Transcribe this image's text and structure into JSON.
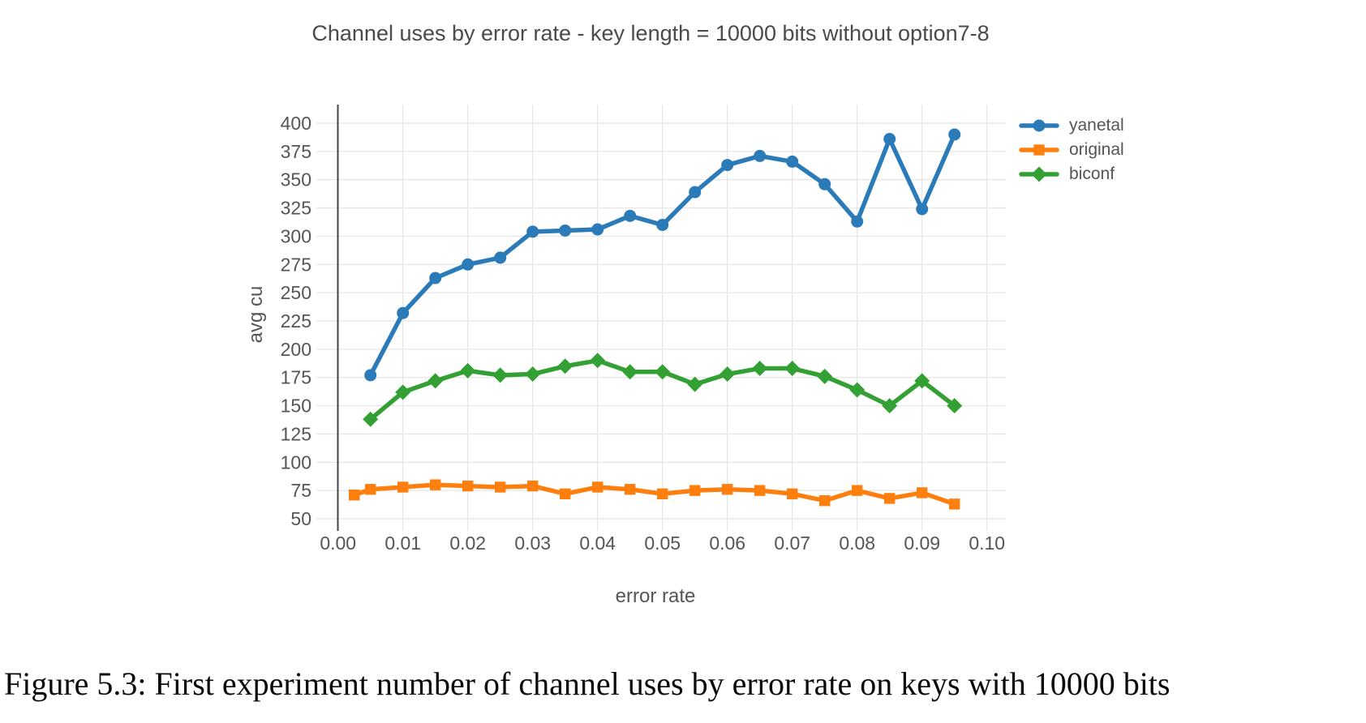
{
  "caption": {
    "text": "Figure 5.3: First experiment number of channel uses by error rate on keys with 10000 bits"
  },
  "chart_data": {
    "type": "line",
    "title": "Channel uses by error rate - key length = 10000 bits without option7-8",
    "xlabel": "error rate",
    "ylabel": "avg cu",
    "grid": true,
    "legend_position": "top-right-outside",
    "xlim": [
      0.0,
      0.103
    ],
    "ylim": [
      38,
      419
    ],
    "x_ticks": [
      0.0,
      0.01,
      0.02,
      0.03,
      0.04,
      0.05,
      0.06,
      0.07,
      0.08,
      0.09,
      0.1
    ],
    "x_tick_labels": [
      "0.00",
      "0.01",
      "0.02",
      "0.03",
      "0.04",
      "0.05",
      "0.06",
      "0.07",
      "0.08",
      "0.09",
      "0.10"
    ],
    "y_ticks": [
      50,
      75,
      100,
      125,
      150,
      175,
      200,
      225,
      250,
      275,
      300,
      325,
      350,
      375,
      400
    ],
    "colors": {
      "grid": "#e8e8e8",
      "axis": "#444444",
      "text": "#555555"
    },
    "series": [
      {
        "name": "yanetal",
        "color": "#2b7bb9",
        "marker": "circle",
        "x": [
          0.005,
          0.01,
          0.015,
          0.02,
          0.025,
          0.03,
          0.035,
          0.04,
          0.045,
          0.05,
          0.055,
          0.06,
          0.065,
          0.07,
          0.075,
          0.08,
          0.085,
          0.09,
          0.095
        ],
        "y": [
          177,
          232,
          263,
          275,
          281,
          304,
          305,
          306,
          318,
          310,
          339,
          363,
          371,
          366,
          346,
          313,
          386,
          324,
          390
        ]
      },
      {
        "name": "original",
        "color": "#ff7f0e",
        "marker": "square",
        "x": [
          0.0025,
          0.005,
          0.01,
          0.015,
          0.02,
          0.025,
          0.03,
          0.035,
          0.04,
          0.045,
          0.05,
          0.055,
          0.06,
          0.065,
          0.07,
          0.075,
          0.08,
          0.085,
          0.09,
          0.095
        ],
        "y": [
          71,
          76,
          78,
          80,
          79,
          78,
          79,
          72,
          78,
          76,
          72,
          75,
          76,
          75,
          72,
          66,
          75,
          68,
          73,
          63
        ]
      },
      {
        "name": "biconf",
        "color": "#33a033",
        "marker": "diamond",
        "x": [
          0.005,
          0.01,
          0.015,
          0.02,
          0.025,
          0.03,
          0.035,
          0.04,
          0.045,
          0.05,
          0.055,
          0.06,
          0.065,
          0.07,
          0.075,
          0.08,
          0.085,
          0.09,
          0.095
        ],
        "y": [
          138,
          162,
          172,
          181,
          177,
          178,
          185,
          190,
          180,
          180,
          169,
          178,
          183,
          183,
          176,
          164,
          150,
          172,
          150
        ]
      }
    ]
  }
}
